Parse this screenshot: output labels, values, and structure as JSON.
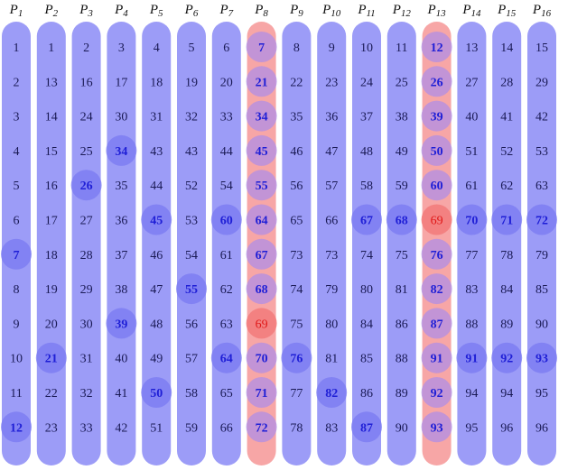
{
  "colors": {
    "column": "#9c9cf7",
    "column_highlight": "#f7a6a6",
    "circle": "#7a7af2",
    "circle_on_highlight": "#b08ee6",
    "circle_red": "#f27a7a",
    "text": "#1a1a55",
    "text_bold": "#1f1fd6",
    "text_red": "#e01818"
  },
  "highlighted_columns": [
    8,
    13
  ],
  "columns": [
    {
      "label": "P",
      "sub": "1",
      "values": [
        1,
        2,
        3,
        4,
        5,
        6,
        7,
        8,
        9,
        10,
        11,
        12
      ],
      "circled": [
        7,
        12
      ],
      "red": []
    },
    {
      "label": "P",
      "sub": "2",
      "values": [
        1,
        13,
        14,
        15,
        16,
        17,
        18,
        19,
        20,
        21,
        22,
        23
      ],
      "circled": [
        21
      ],
      "red": []
    },
    {
      "label": "P",
      "sub": "3",
      "values": [
        2,
        16,
        24,
        25,
        26,
        27,
        28,
        29,
        30,
        31,
        32,
        33
      ],
      "circled": [
        26
      ],
      "red": []
    },
    {
      "label": "P",
      "sub": "4",
      "values": [
        3,
        17,
        30,
        34,
        35,
        36,
        37,
        38,
        39,
        40,
        41,
        42
      ],
      "circled": [
        34,
        39
      ],
      "red": []
    },
    {
      "label": "P",
      "sub": "5",
      "values": [
        4,
        18,
        31,
        43,
        44,
        45,
        46,
        47,
        48,
        49,
        50,
        51
      ],
      "circled": [
        45,
        50
      ],
      "red": []
    },
    {
      "label": "P",
      "sub": "6",
      "values": [
        5,
        19,
        32,
        43,
        52,
        53,
        54,
        55,
        56,
        57,
        58,
        59
      ],
      "circled": [
        55
      ],
      "red": []
    },
    {
      "label": "P",
      "sub": "7",
      "values": [
        6,
        20,
        33,
        44,
        54,
        60,
        61,
        62,
        63,
        64,
        65,
        66
      ],
      "circled": [
        60,
        64
      ],
      "red": []
    },
    {
      "label": "P",
      "sub": "8",
      "values": [
        7,
        21,
        34,
        45,
        55,
        64,
        67,
        68,
        69,
        70,
        71,
        72
      ],
      "circled": [
        7,
        21,
        34,
        45,
        55,
        64,
        67,
        68,
        69,
        70,
        71,
        72
      ],
      "red": [
        69
      ]
    },
    {
      "label": "P",
      "sub": "9",
      "values": [
        8,
        22,
        35,
        46,
        56,
        65,
        73,
        74,
        75,
        76,
        77,
        78
      ],
      "circled": [
        76
      ],
      "red": []
    },
    {
      "label": "P",
      "sub": "10",
      "values": [
        9,
        23,
        36,
        47,
        57,
        66,
        73,
        79,
        80,
        81,
        82,
        83
      ],
      "circled": [
        82
      ],
      "red": []
    },
    {
      "label": "P",
      "sub": "11",
      "values": [
        10,
        24,
        37,
        48,
        58,
        67,
        74,
        80,
        84,
        85,
        86,
        87
      ],
      "circled": [
        67,
        87
      ],
      "red": []
    },
    {
      "label": "P",
      "sub": "12",
      "values": [
        11,
        25,
        38,
        49,
        59,
        68,
        75,
        81,
        86,
        88,
        89,
        90
      ],
      "circled": [
        68
      ],
      "red": []
    },
    {
      "label": "P",
      "sub": "13",
      "values": [
        12,
        26,
        39,
        50,
        60,
        69,
        76,
        82,
        87,
        91,
        92,
        93
      ],
      "circled": [
        12,
        26,
        39,
        50,
        60,
        69,
        76,
        82,
        87,
        91,
        92,
        93
      ],
      "red": [
        69
      ]
    },
    {
      "label": "P",
      "sub": "14",
      "values": [
        13,
        27,
        40,
        51,
        61,
        70,
        77,
        83,
        88,
        91,
        94,
        95
      ],
      "circled": [
        70,
        91
      ],
      "red": []
    },
    {
      "label": "P",
      "sub": "15",
      "values": [
        14,
        28,
        41,
        52,
        62,
        71,
        78,
        84,
        89,
        92,
        94,
        96
      ],
      "circled": [
        71,
        92
      ],
      "red": []
    },
    {
      "label": "P",
      "sub": "16",
      "values": [
        15,
        29,
        42,
        53,
        63,
        72,
        79,
        85,
        90,
        93,
        95,
        96
      ],
      "circled": [
        72,
        93
      ],
      "red": []
    }
  ]
}
